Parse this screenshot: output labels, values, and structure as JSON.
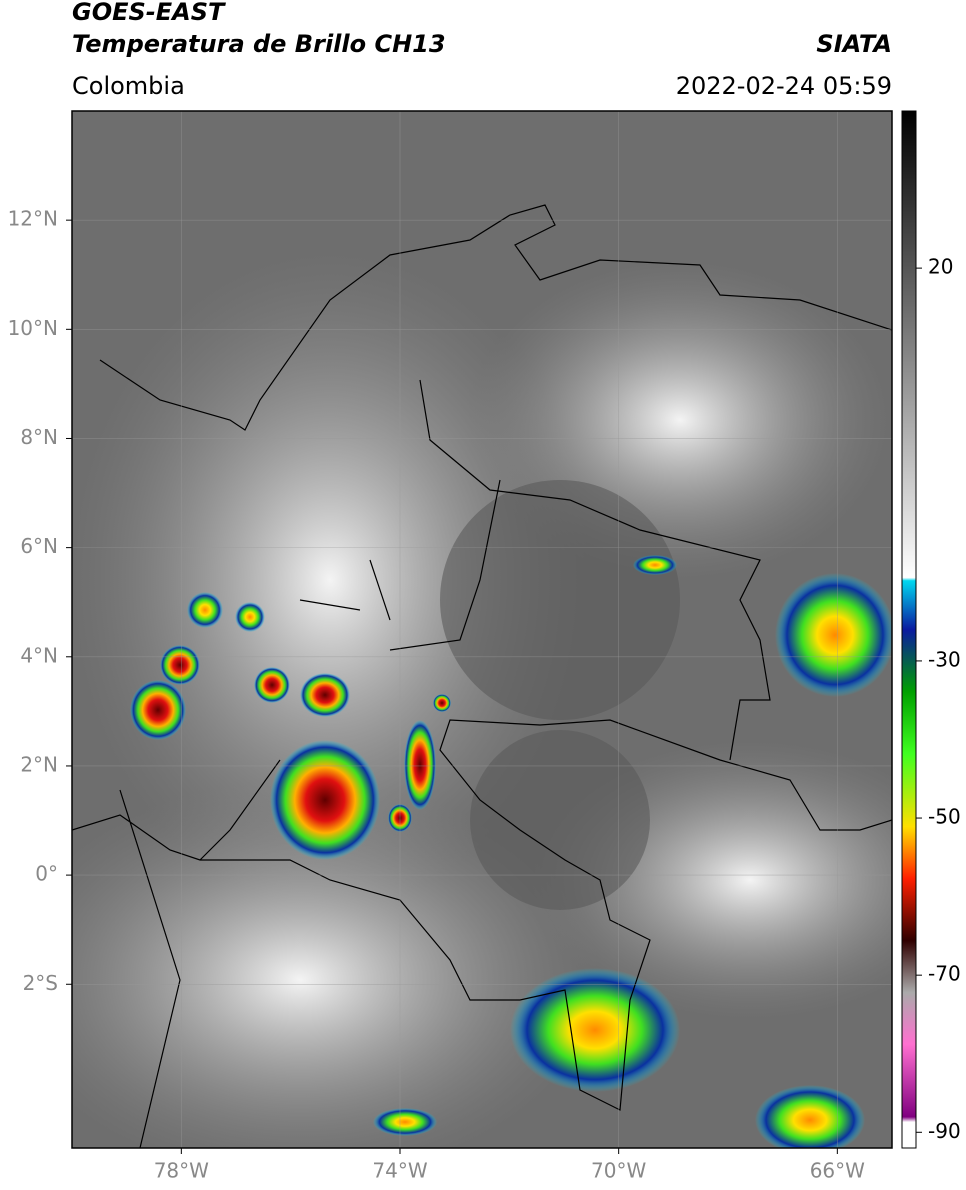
{
  "header": {
    "title": "GOES-EAST",
    "subtitle": "Temperatura de Brillo CH13",
    "source": "SIATA",
    "region": "Colombia",
    "datetime": "2022-02-24 05:59"
  },
  "map": {
    "lat_range": [
      -5,
      14
    ],
    "lon_range": [
      -80,
      -65
    ],
    "lat_ticks": [
      {
        "value": 12,
        "label": "12°N"
      },
      {
        "value": 10,
        "label": "10°N"
      },
      {
        "value": 8,
        "label": "8°N"
      },
      {
        "value": 6,
        "label": "6°N"
      },
      {
        "value": 4,
        "label": "4°N"
      },
      {
        "value": 2,
        "label": "2°N"
      },
      {
        "value": 0,
        "label": "0°"
      },
      {
        "value": -2,
        "label": "2°S"
      }
    ],
    "lon_ticks": [
      {
        "value": -78,
        "label": "78°W"
      },
      {
        "value": -74,
        "label": "74°W"
      },
      {
        "value": -70,
        "label": "70°W"
      },
      {
        "value": -66,
        "label": "66°W"
      }
    ],
    "grid": true
  },
  "colorbar": {
    "range": [
      -92,
      40
    ],
    "ticks": [
      20,
      -30,
      -50,
      -70,
      -90
    ]
  }
}
